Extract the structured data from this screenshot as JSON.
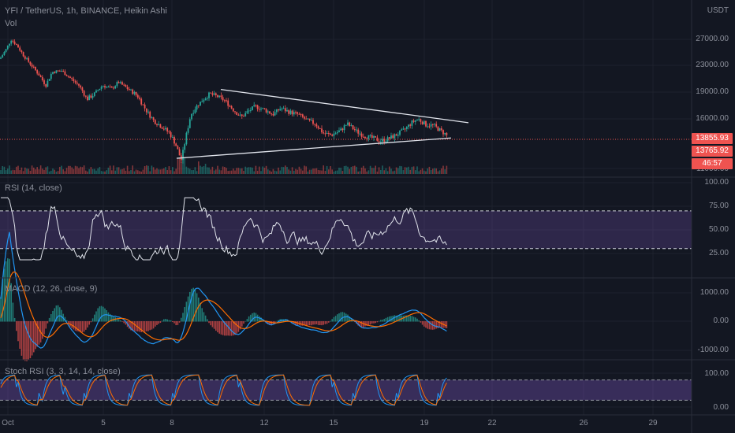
{
  "header": {
    "symbol_line": "YFI / TetherUS, 1h, BINANCE, Heikin Ashi",
    "vol_label": "Vol",
    "rsi_label": "RSI (14, close)",
    "macd_label": "MACD (12, 26, close, 9)",
    "stoch_label": "Stoch RSI (3, 3, 14, 14, close)"
  },
  "price_axis": {
    "currency": "USDT",
    "ticks": [
      "27000.00",
      "23000.00",
      "19000.00",
      "16000.00",
      "11000.00"
    ],
    "last_price": "13855.93",
    "second_price": "13765.92",
    "countdown": "46:57"
  },
  "rsi_axis": {
    "ticks": [
      "100.00",
      "75.00",
      "50.00",
      "25.00"
    ]
  },
  "macd_axis": {
    "ticks": [
      "1000.00",
      "0.00",
      "-1000.00"
    ]
  },
  "stoch_axis": {
    "ticks": [
      "100.00",
      "0.00"
    ]
  },
  "time_axis": {
    "labels": [
      "Oct",
      "5",
      "8",
      "12",
      "15",
      "19",
      "22",
      "26",
      "29"
    ]
  },
  "colors": {
    "background": "#131722",
    "up": "#26a69a",
    "down": "#ef5350",
    "rsi_band": "#7e57c2",
    "trendline": "#e0e3eb",
    "macd": "#2196f3",
    "signal": "#ff6d00",
    "price_line": "#ef5350"
  },
  "chart_data": {
    "type": "candlestick",
    "price_ylim": [
      11000,
      28500
    ],
    "price_path_points": [
      [
        0,
        24000
      ],
      [
        8,
        25500
      ],
      [
        14,
        27000
      ],
      [
        22,
        26000
      ],
      [
        30,
        24500
      ],
      [
        40,
        23000
      ],
      [
        50,
        21500
      ],
      [
        58,
        20000
      ],
      [
        66,
        22000
      ],
      [
        78,
        22200
      ],
      [
        90,
        21000
      ],
      [
        100,
        20000
      ],
      [
        110,
        18200
      ],
      [
        120,
        18800
      ],
      [
        130,
        20000
      ],
      [
        142,
        19500
      ],
      [
        150,
        20500
      ],
      [
        162,
        19500
      ],
      [
        175,
        18500
      ],
      [
        185,
        17000
      ],
      [
        195,
        15800
      ],
      [
        205,
        15200
      ],
      [
        215,
        14500
      ],
      [
        222,
        13500
      ],
      [
        230,
        11800
      ],
      [
        236,
        14200
      ],
      [
        242,
        16500
      ],
      [
        250,
        17500
      ],
      [
        258,
        18200
      ],
      [
        266,
        18800
      ],
      [
        276,
        18500
      ],
      [
        286,
        18000
      ],
      [
        296,
        17000
      ],
      [
        306,
        16200
      ],
      [
        314,
        16800
      ],
      [
        324,
        17400
      ],
      [
        336,
        17000
      ],
      [
        346,
        16500
      ],
      [
        356,
        17200
      ],
      [
        366,
        16800
      ],
      [
        378,
        16500
      ],
      [
        390,
        15800
      ],
      [
        400,
        15500
      ],
      [
        410,
        14500
      ],
      [
        420,
        14300
      ],
      [
        432,
        14800
      ],
      [
        440,
        15500
      ],
      [
        452,
        14700
      ],
      [
        462,
        14200
      ],
      [
        472,
        14000
      ],
      [
        482,
        13700
      ],
      [
        492,
        13900
      ],
      [
        502,
        14300
      ],
      [
        512,
        14800
      ],
      [
        522,
        15600
      ],
      [
        530,
        16000
      ],
      [
        540,
        15400
      ],
      [
        550,
        15300
      ],
      [
        558,
        14800
      ],
      [
        565,
        14400
      ],
      [
        570,
        13860
      ]
    ],
    "upper_trendline": [
      [
        280,
        19400
      ],
      [
        594,
        15600
      ]
    ],
    "lower_trendline": [
      [
        224,
        12000
      ],
      [
        572,
        14000
      ]
    ],
    "rsi": {
      "upper": 70,
      "lower": 30,
      "ylim": [
        0,
        100
      ]
    },
    "macd": {
      "ylim": [
        -1200,
        1200
      ]
    },
    "stoch": {
      "upper": 80,
      "lower": 20,
      "ylim": [
        0,
        100
      ]
    }
  }
}
